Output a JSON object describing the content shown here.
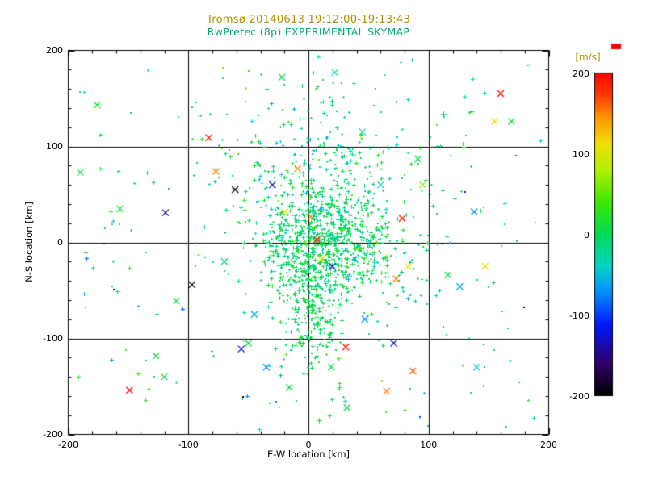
{
  "colors": {
    "background": "#ffffff",
    "title1": "#b09000",
    "title2": "#00a87c",
    "axis_text": "#000000",
    "axis_line": "#000000",
    "cap_marker": "#ff0000"
  },
  "chart_data": {
    "type": "scatter",
    "title_line1": "Tromsø 20140613 19:12:00-19:13:43",
    "title_line2": "RwPretec (8p) EXPERIMENTAL SKYMAP",
    "xlabel": "E-W location [km]",
    "ylabel": "N-S location [km]",
    "xlim": [
      -200,
      200
    ],
    "ylim": [
      -200,
      200
    ],
    "xticks": [
      -200,
      -100,
      0,
      100,
      200
    ],
    "yticks": [
      -200,
      -100,
      0,
      100,
      200
    ],
    "grid_values": [
      -100,
      0,
      100
    ],
    "grid": true,
    "point_color_meaning": "Doppler velocity [m/s] mapped through rainbow colorbar",
    "colorbar": {
      "label": "[m/s]",
      "ticks": [
        200,
        100,
        0,
        -100,
        -200
      ],
      "min": -200,
      "max": 200,
      "stops": [
        [
          0.0,
          "#000000"
        ],
        [
          0.1,
          "#30006a"
        ],
        [
          0.22,
          "#0018ff"
        ],
        [
          0.32,
          "#0090ff"
        ],
        [
          0.4,
          "#00d4c8"
        ],
        [
          0.5,
          "#00db55"
        ],
        [
          0.6,
          "#3ce800"
        ],
        [
          0.7,
          "#b4f000"
        ],
        [
          0.78,
          "#f0e000"
        ],
        [
          0.86,
          "#ff9800"
        ],
        [
          0.93,
          "#ff3c00"
        ],
        [
          1.0,
          "#ff0000"
        ]
      ]
    },
    "seed": 20140613,
    "clusters": [
      {
        "n": 650,
        "cx": 12,
        "cy": -3,
        "sx": 26,
        "sy": 27,
        "v": -5,
        "vsd": 20,
        "dot_frac": 0.3
      },
      {
        "n": 300,
        "cx": 2,
        "cy": -65,
        "sx": 13,
        "sy": 36,
        "v": 0,
        "vsd": 12,
        "dot_frac": 0.3
      },
      {
        "n": 260,
        "cx": 15,
        "cy": 42,
        "sx": 36,
        "sy": 33,
        "v": -8,
        "vsd": 22,
        "dot_frac": 0.3
      },
      {
        "n": 130,
        "cx": -5,
        "cy": 115,
        "sx": 48,
        "sy": 35,
        "v": -15,
        "vsd": 25,
        "dot_frac": 0.3
      },
      {
        "n": 70,
        "cx": 62,
        "cy": -25,
        "sx": 28,
        "sy": 38,
        "v": -5,
        "vsd": 18,
        "dot_frac": 0.3
      },
      {
        "n": 160,
        "uniform": true,
        "x0": -195,
        "x1": 195,
        "y0": -195,
        "y1": 195,
        "v": -5,
        "vsd": 35,
        "dot_frac": 0.4
      }
    ],
    "outliers": [
      [
        -176,
        143,
        15,
        "x"
      ],
      [
        -190,
        73,
        10,
        "x"
      ],
      [
        -157,
        35,
        5,
        "x"
      ],
      [
        -149,
        -154,
        195,
        "x"
      ],
      [
        -127,
        -118,
        10,
        "x"
      ],
      [
        -119,
        31,
        -150,
        "x"
      ],
      [
        -97,
        -44,
        -195,
        "x"
      ],
      [
        -83,
        109,
        190,
        "x"
      ],
      [
        -77,
        74,
        150,
        "x"
      ],
      [
        -61,
        55,
        -190,
        "x"
      ],
      [
        -56,
        -111,
        -120,
        "x"
      ],
      [
        -50,
        -105,
        10,
        "x"
      ],
      [
        -35,
        -130,
        -70,
        "x"
      ],
      [
        19,
        -130,
        5,
        "x"
      ],
      [
        31,
        -109,
        190,
        "x"
      ],
      [
        47,
        -80,
        -70,
        "x"
      ],
      [
        78,
        25,
        190,
        "x"
      ],
      [
        83,
        -25,
        110,
        "x"
      ],
      [
        73,
        -38,
        150,
        "x"
      ],
      [
        87,
        -134,
        160,
        "x"
      ],
      [
        71,
        -105,
        -120,
        "x"
      ],
      [
        110,
        0,
        -195,
        "dot"
      ],
      [
        116,
        -34,
        10,
        "x"
      ],
      [
        126,
        -46,
        -60,
        "x"
      ],
      [
        160,
        155,
        195,
        "x"
      ],
      [
        155,
        126,
        110,
        "x"
      ],
      [
        169,
        126,
        10,
        "x"
      ],
      [
        179,
        -67,
        -195,
        "dot"
      ],
      [
        147,
        -25,
        110,
        "x"
      ],
      [
        138,
        32,
        -70,
        "x"
      ],
      [
        130,
        53,
        -120,
        "dot"
      ],
      [
        -22,
        172,
        5,
        "x"
      ],
      [
        22,
        177,
        -40,
        "x"
      ],
      [
        112,
        134,
        -30,
        "plus"
      ],
      [
        91,
        87,
        10,
        "x"
      ],
      [
        -9,
        77,
        150,
        "x"
      ],
      [
        -20,
        32,
        110,
        "x"
      ],
      [
        9,
        -185,
        10,
        "plus"
      ],
      [
        32,
        -172,
        5,
        "x"
      ],
      [
        -16,
        -151,
        10,
        "x"
      ],
      [
        -55,
        -160,
        -195,
        "dot"
      ],
      [
        -110,
        -61,
        10,
        "x"
      ],
      [
        -136,
        -10,
        15,
        "dot"
      ],
      [
        -163,
        -48,
        -195,
        "dot"
      ],
      [
        -171,
        0,
        -190,
        "dot"
      ],
      [
        2,
        27,
        150,
        "x"
      ],
      [
        7,
        3,
        190,
        "x"
      ],
      [
        11,
        -17,
        110,
        "x"
      ],
      [
        20,
        -25,
        -120,
        "x"
      ],
      [
        -30,
        60,
        -150,
        "x"
      ],
      [
        60,
        60,
        -40,
        "x"
      ],
      [
        45,
        115,
        -20,
        "x"
      ],
      [
        -45,
        -75,
        -60,
        "x"
      ],
      [
        -70,
        -20,
        -10,
        "x"
      ],
      [
        95,
        60,
        60,
        "x"
      ],
      [
        -120,
        -140,
        10,
        "x"
      ],
      [
        140,
        -130,
        -40,
        "x"
      ],
      [
        65,
        -155,
        150,
        "x"
      ]
    ]
  }
}
